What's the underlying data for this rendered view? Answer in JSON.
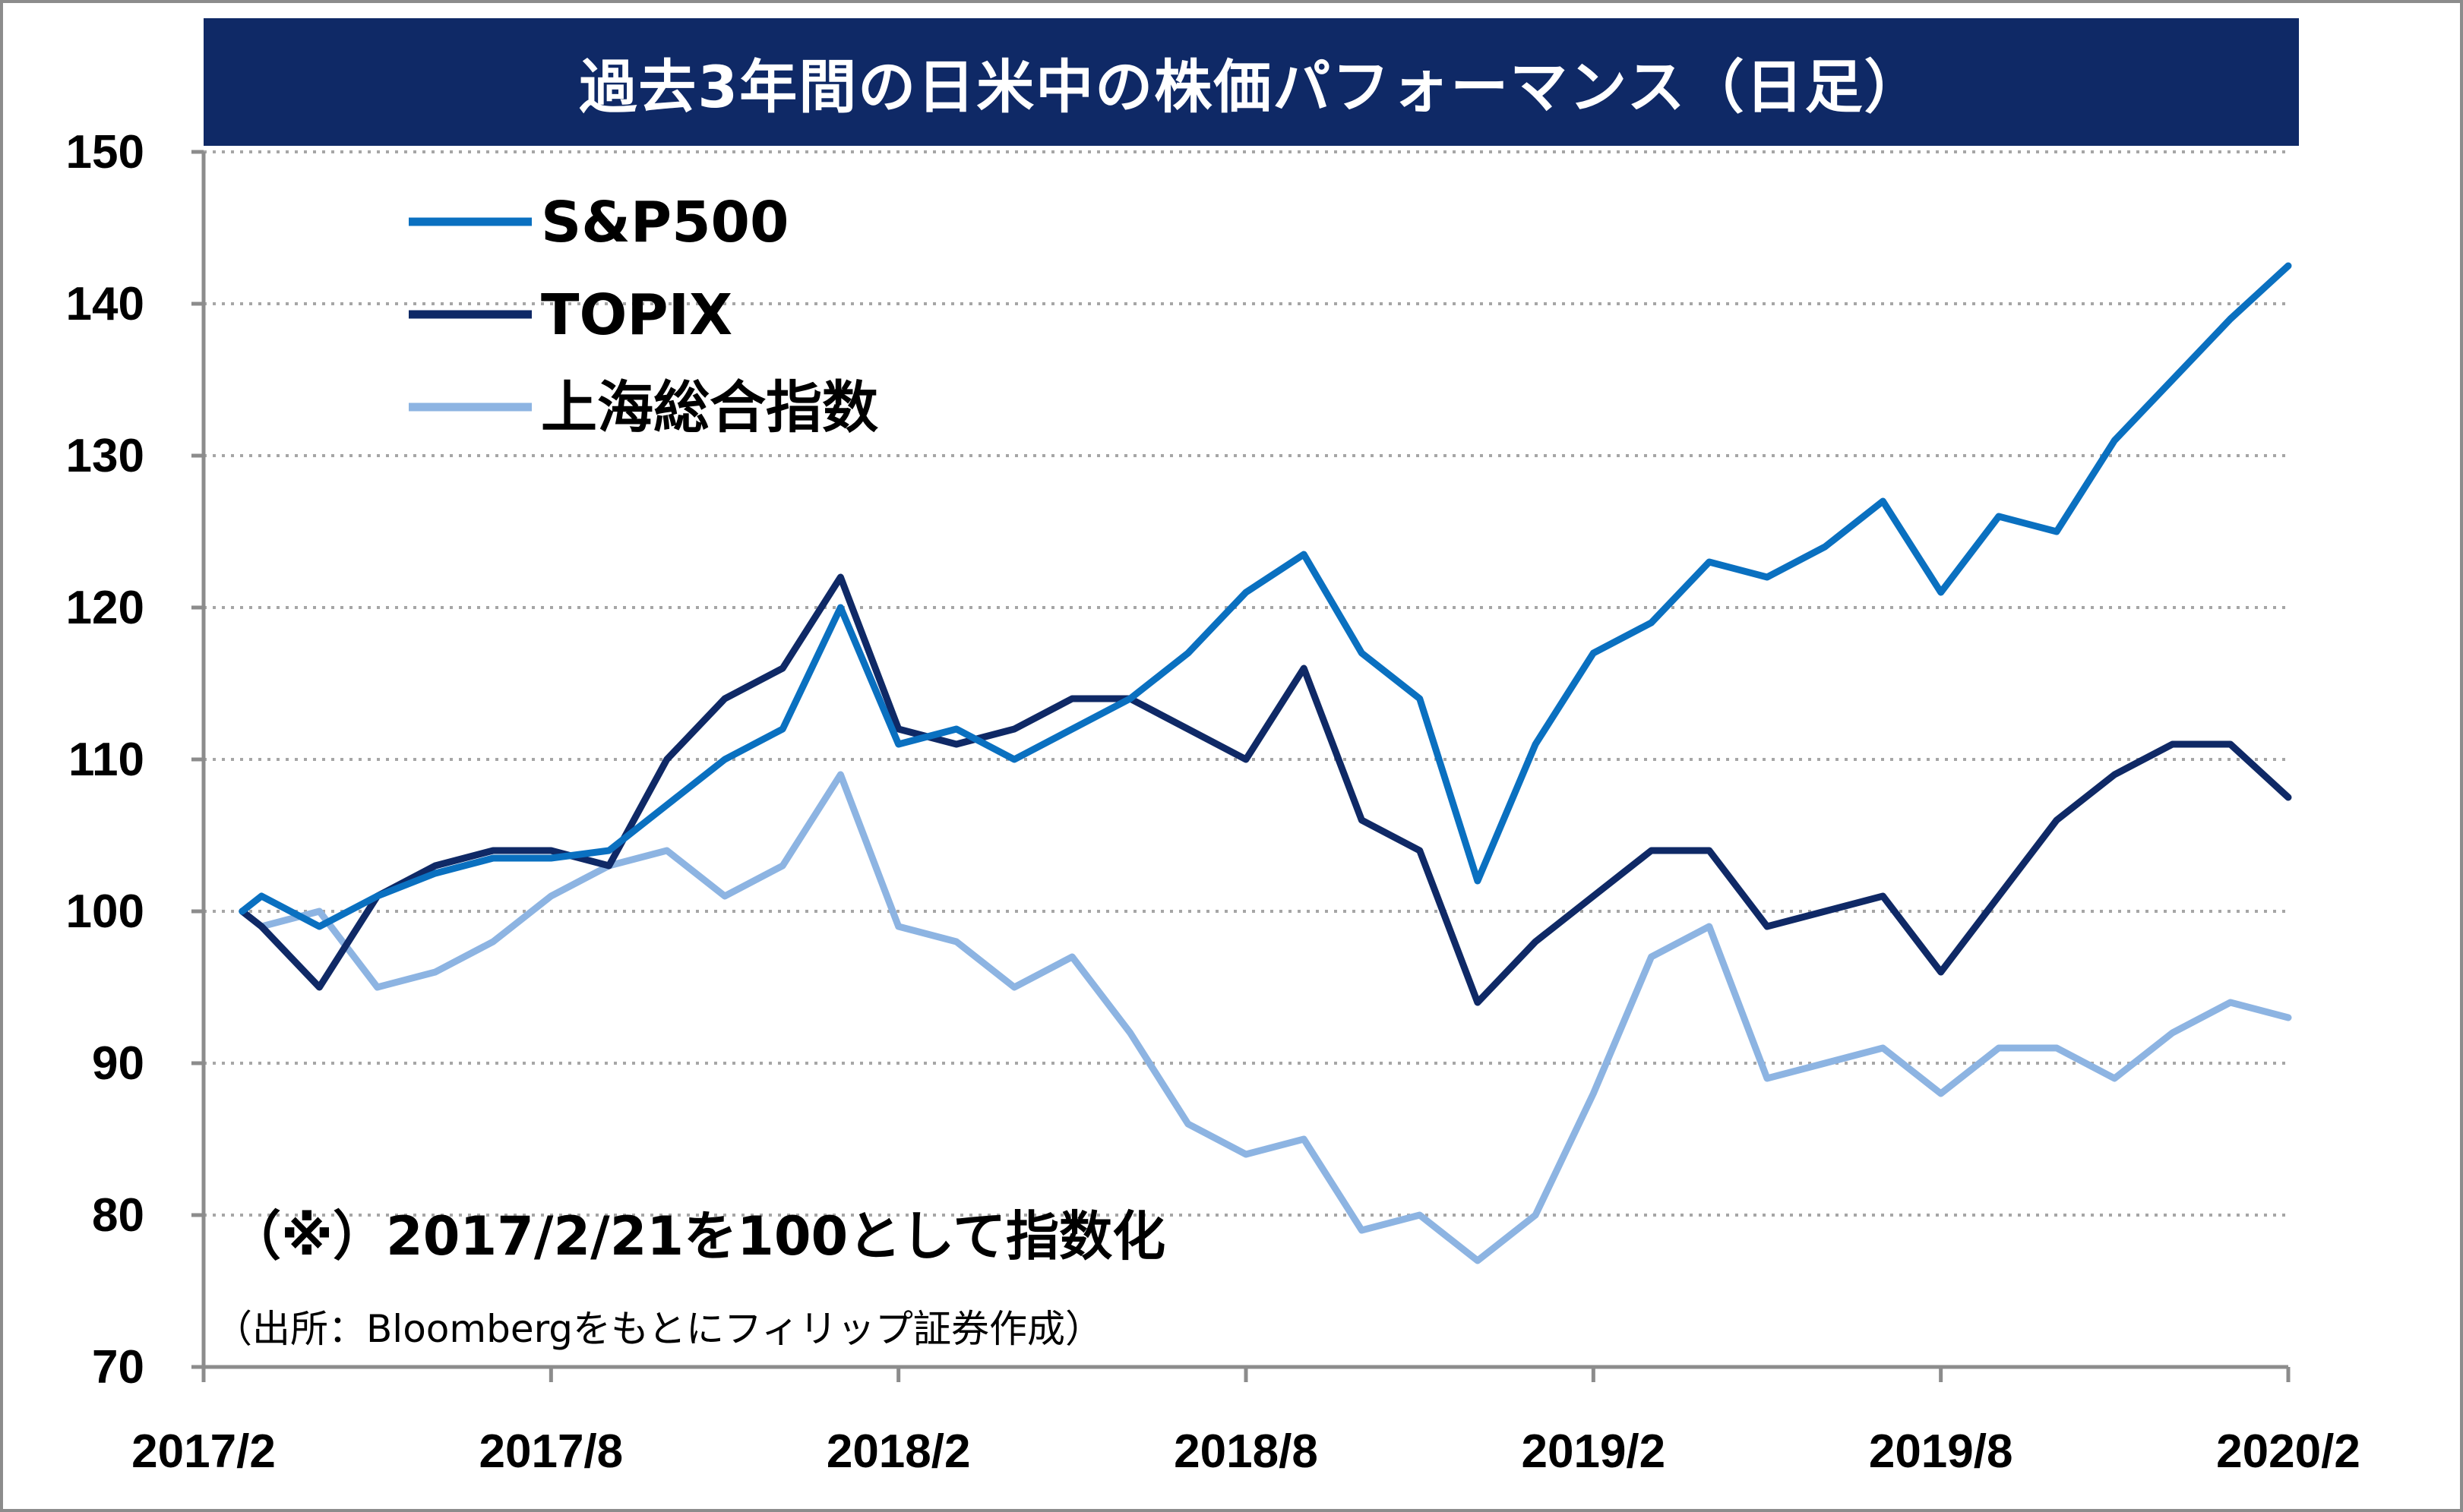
{
  "chart_data": {
    "type": "line",
    "title": "過去3年間の日米中の株価パフォーマンス（日足）",
    "xlabel": "",
    "ylabel": "",
    "ylim": [
      70,
      150
    ],
    "yticks": [
      "150",
      "140",
      "130",
      "120",
      "110",
      "100",
      "90",
      "80",
      "70"
    ],
    "xlim": [
      "2017-02",
      "2020-02"
    ],
    "xticks": [
      {
        "label": "2017/2",
        "t": "2017-02"
      },
      {
        "label": "2017/8",
        "t": "2017-08"
      },
      {
        "label": "2018/2",
        "t": "2018-02"
      },
      {
        "label": "2018/8",
        "t": "2018-08"
      },
      {
        "label": "2019/2",
        "t": "2019-02"
      },
      {
        "label": "2019/8",
        "t": "2019-08"
      },
      {
        "label": "2020/2",
        "t": "2020-02"
      }
    ],
    "grid": "horizontal-dotted",
    "legend_position": "top-left",
    "annotation": "（※）2017/2/21を100として指数化",
    "source": "（出所：Bloombergをもとにフィリップ証券作成）",
    "series": [
      {
        "name": "S&P500",
        "color": "#0a70c0",
        "points": [
          [
            "2017-02-21",
            100
          ],
          [
            "2017-03",
            101
          ],
          [
            "2017-04",
            99
          ],
          [
            "2017-05",
            101
          ],
          [
            "2017-06",
            102.5
          ],
          [
            "2017-07",
            103.5
          ],
          [
            "2017-08",
            103.5
          ],
          [
            "2017-09",
            104
          ],
          [
            "2017-10",
            107
          ],
          [
            "2017-11",
            110
          ],
          [
            "2017-12",
            112
          ],
          [
            "2018-01",
            120
          ],
          [
            "2018-02",
            111
          ],
          [
            "2018-03",
            112
          ],
          [
            "2018-04",
            110
          ],
          [
            "2018-05",
            112
          ],
          [
            "2018-06",
            114
          ],
          [
            "2018-07",
            117
          ],
          [
            "2018-08",
            121
          ],
          [
            "2018-09",
            123.5
          ],
          [
            "2018-10",
            117
          ],
          [
            "2018-11",
            114
          ],
          [
            "2018-12",
            102
          ],
          [
            "2019-01",
            111
          ],
          [
            "2019-02",
            117
          ],
          [
            "2019-03",
            119
          ],
          [
            "2019-04",
            123
          ],
          [
            "2019-05",
            122
          ],
          [
            "2019-06",
            124
          ],
          [
            "2019-07",
            127
          ],
          [
            "2019-08",
            121
          ],
          [
            "2019-09",
            126
          ],
          [
            "2019-10",
            125
          ],
          [
            "2019-11",
            131
          ],
          [
            "2019-12",
            135
          ],
          [
            "2020-01",
            139
          ],
          [
            "2020-02",
            142.5
          ]
        ]
      },
      {
        "name": "TOPIX",
        "color": "#0f2966",
        "points": [
          [
            "2017-02-21",
            100
          ],
          [
            "2017-03",
            99
          ],
          [
            "2017-04",
            95
          ],
          [
            "2017-05",
            101
          ],
          [
            "2017-06",
            103
          ],
          [
            "2017-07",
            104
          ],
          [
            "2017-08",
            104
          ],
          [
            "2017-09",
            103
          ],
          [
            "2017-10",
            110
          ],
          [
            "2017-11",
            114
          ],
          [
            "2017-12",
            116
          ],
          [
            "2018-01",
            122
          ],
          [
            "2018-02",
            112
          ],
          [
            "2018-03",
            111
          ],
          [
            "2018-04",
            112
          ],
          [
            "2018-05",
            114
          ],
          [
            "2018-06",
            114
          ],
          [
            "2018-07",
            112
          ],
          [
            "2018-08",
            110
          ],
          [
            "2018-09",
            116
          ],
          [
            "2018-10",
            106
          ],
          [
            "2018-11",
            104
          ],
          [
            "2018-12",
            94
          ],
          [
            "2019-01",
            98
          ],
          [
            "2019-02",
            101
          ],
          [
            "2019-03",
            104
          ],
          [
            "2019-04",
            104
          ],
          [
            "2019-05",
            99
          ],
          [
            "2019-06",
            100
          ],
          [
            "2019-07",
            101
          ],
          [
            "2019-08",
            96
          ],
          [
            "2019-09",
            101
          ],
          [
            "2019-10",
            106
          ],
          [
            "2019-11",
            109
          ],
          [
            "2019-12",
            111
          ],
          [
            "2020-01",
            111
          ],
          [
            "2020-02",
            107.5
          ]
        ]
      },
      {
        "name": "上海総合指数",
        "color": "#8db4e2",
        "points": [
          [
            "2017-02-21",
            100
          ],
          [
            "2017-03",
            99
          ],
          [
            "2017-04",
            100
          ],
          [
            "2017-05",
            95
          ],
          [
            "2017-06",
            96
          ],
          [
            "2017-07",
            98
          ],
          [
            "2017-08",
            101
          ],
          [
            "2017-09",
            103
          ],
          [
            "2017-10",
            104
          ],
          [
            "2017-11",
            101
          ],
          [
            "2017-12",
            103
          ],
          [
            "2018-01",
            109
          ],
          [
            "2018-02",
            99
          ],
          [
            "2018-03",
            98
          ],
          [
            "2018-04",
            95
          ],
          [
            "2018-05",
            97
          ],
          [
            "2018-06",
            92
          ],
          [
            "2018-07",
            86
          ],
          [
            "2018-08",
            84
          ],
          [
            "2018-09",
            85
          ],
          [
            "2018-10",
            79
          ],
          [
            "2018-11",
            80
          ],
          [
            "2018-12",
            77
          ],
          [
            "2019-01",
            80
          ],
          [
            "2019-02",
            88
          ],
          [
            "2019-03",
            97
          ],
          [
            "2019-04",
            99
          ],
          [
            "2019-05",
            89
          ],
          [
            "2019-06",
            90
          ],
          [
            "2019-07",
            91
          ],
          [
            "2019-08",
            88
          ],
          [
            "2019-09",
            91
          ],
          [
            "2019-10",
            91
          ],
          [
            "2019-11",
            89
          ],
          [
            "2019-12",
            92
          ],
          [
            "2020-01",
            94
          ],
          [
            "2020-02",
            93
          ]
        ]
      }
    ]
  }
}
